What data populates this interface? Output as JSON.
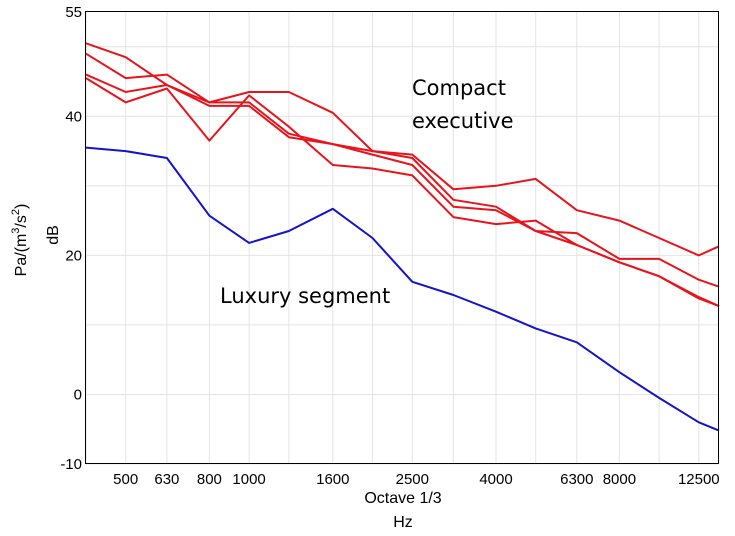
{
  "chart_data": {
    "type": "line",
    "xlabel": "Octave 1/3",
    "xunit": "Hz",
    "ylabel": "dB",
    "yunit_prefix": "Pa/(m",
    "yunit_exp1": "3",
    "yunit_mid": "/s",
    "yunit_exp2": "2",
    "yunit_suffix": ")",
    "x_scale": "log",
    "xlim": [
      400,
      14000
    ],
    "ylim": [
      -10,
      55
    ],
    "grid": true,
    "x_ticks": [
      {
        "value": 500,
        "label": "500"
      },
      {
        "value": 630,
        "label": "630"
      },
      {
        "value": 800,
        "label": "800"
      },
      {
        "value": 1000,
        "label": "1000"
      },
      {
        "value": 1600,
        "label": "1600"
      },
      {
        "value": 2500,
        "label": "2500"
      },
      {
        "value": 4000,
        "label": "4000"
      },
      {
        "value": 6300,
        "label": "6300"
      },
      {
        "value": 8000,
        "label": "8000"
      },
      {
        "value": 12500,
        "label": "12500"
      }
    ],
    "x_gridlines": [
      400,
      500,
      630,
      800,
      1000,
      1250,
      1600,
      2000,
      2500,
      3150,
      4000,
      5000,
      6300,
      8000,
      10000,
      12500
    ],
    "y_ticks": [
      {
        "value": 55,
        "label": "55"
      },
      {
        "value": 40,
        "label": "40"
      },
      {
        "value": 20,
        "label": "20"
      },
      {
        "value": 0,
        "label": "0"
      },
      {
        "value": -10,
        "label": "-10"
      }
    ],
    "y_gridlines": [
      50,
      40,
      30,
      20,
      10,
      0,
      -10
    ],
    "x": [
      400,
      500,
      630,
      800,
      1000,
      1250,
      1600,
      2000,
      2500,
      3150,
      4000,
      5000,
      6300,
      8000,
      10000,
      12500,
      14000
    ],
    "series": [
      {
        "color": "#e8141b",
        "values": [
          50.5,
          48.5,
          44.5,
          41.5,
          41.5,
          37.0,
          36.0,
          35.0,
          34.0,
          28.0,
          27.0,
          23.5,
          23.2,
          19.5,
          19.5,
          16.5,
          15.5
        ]
      },
      {
        "color": "#e8141b",
        "values": [
          46.0,
          43.5,
          44.5,
          42.0,
          43.5,
          43.5,
          40.5,
          35.0,
          34.5,
          29.5,
          30.0,
          31.0,
          26.5,
          25.0,
          22.5,
          20.0,
          21.3
        ]
      },
      {
        "color": "#e8141b",
        "values": [
          45.5,
          42.0,
          44.0,
          36.5,
          43.0,
          38.5,
          33.0,
          32.5,
          31.5,
          25.5,
          24.5,
          25.0,
          21.5,
          19.0,
          17.0,
          14.0,
          12.7
        ]
      },
      {
        "color": "#e8141b",
        "values": [
          49.0,
          45.5,
          46.0,
          42.0,
          42.0,
          37.5,
          36.0,
          34.5,
          33.0,
          27.0,
          26.5,
          23.5,
          21.5,
          19.0,
          17.0,
          13.8,
          12.7
        ]
      },
      {
        "color": "#1414c8",
        "values": [
          35.5,
          35.0,
          34.0,
          25.7,
          21.8,
          23.5,
          26.7,
          22.5,
          16.2,
          14.3,
          11.9,
          9.5,
          7.5,
          3.2,
          -0.5,
          -4.0,
          -5.2
        ]
      }
    ],
    "annotations": [
      {
        "id": "compact",
        "lines": [
          "Compact",
          "executive"
        ]
      },
      {
        "id": "luxury",
        "lines": [
          "Luxury segment"
        ]
      }
    ]
  }
}
